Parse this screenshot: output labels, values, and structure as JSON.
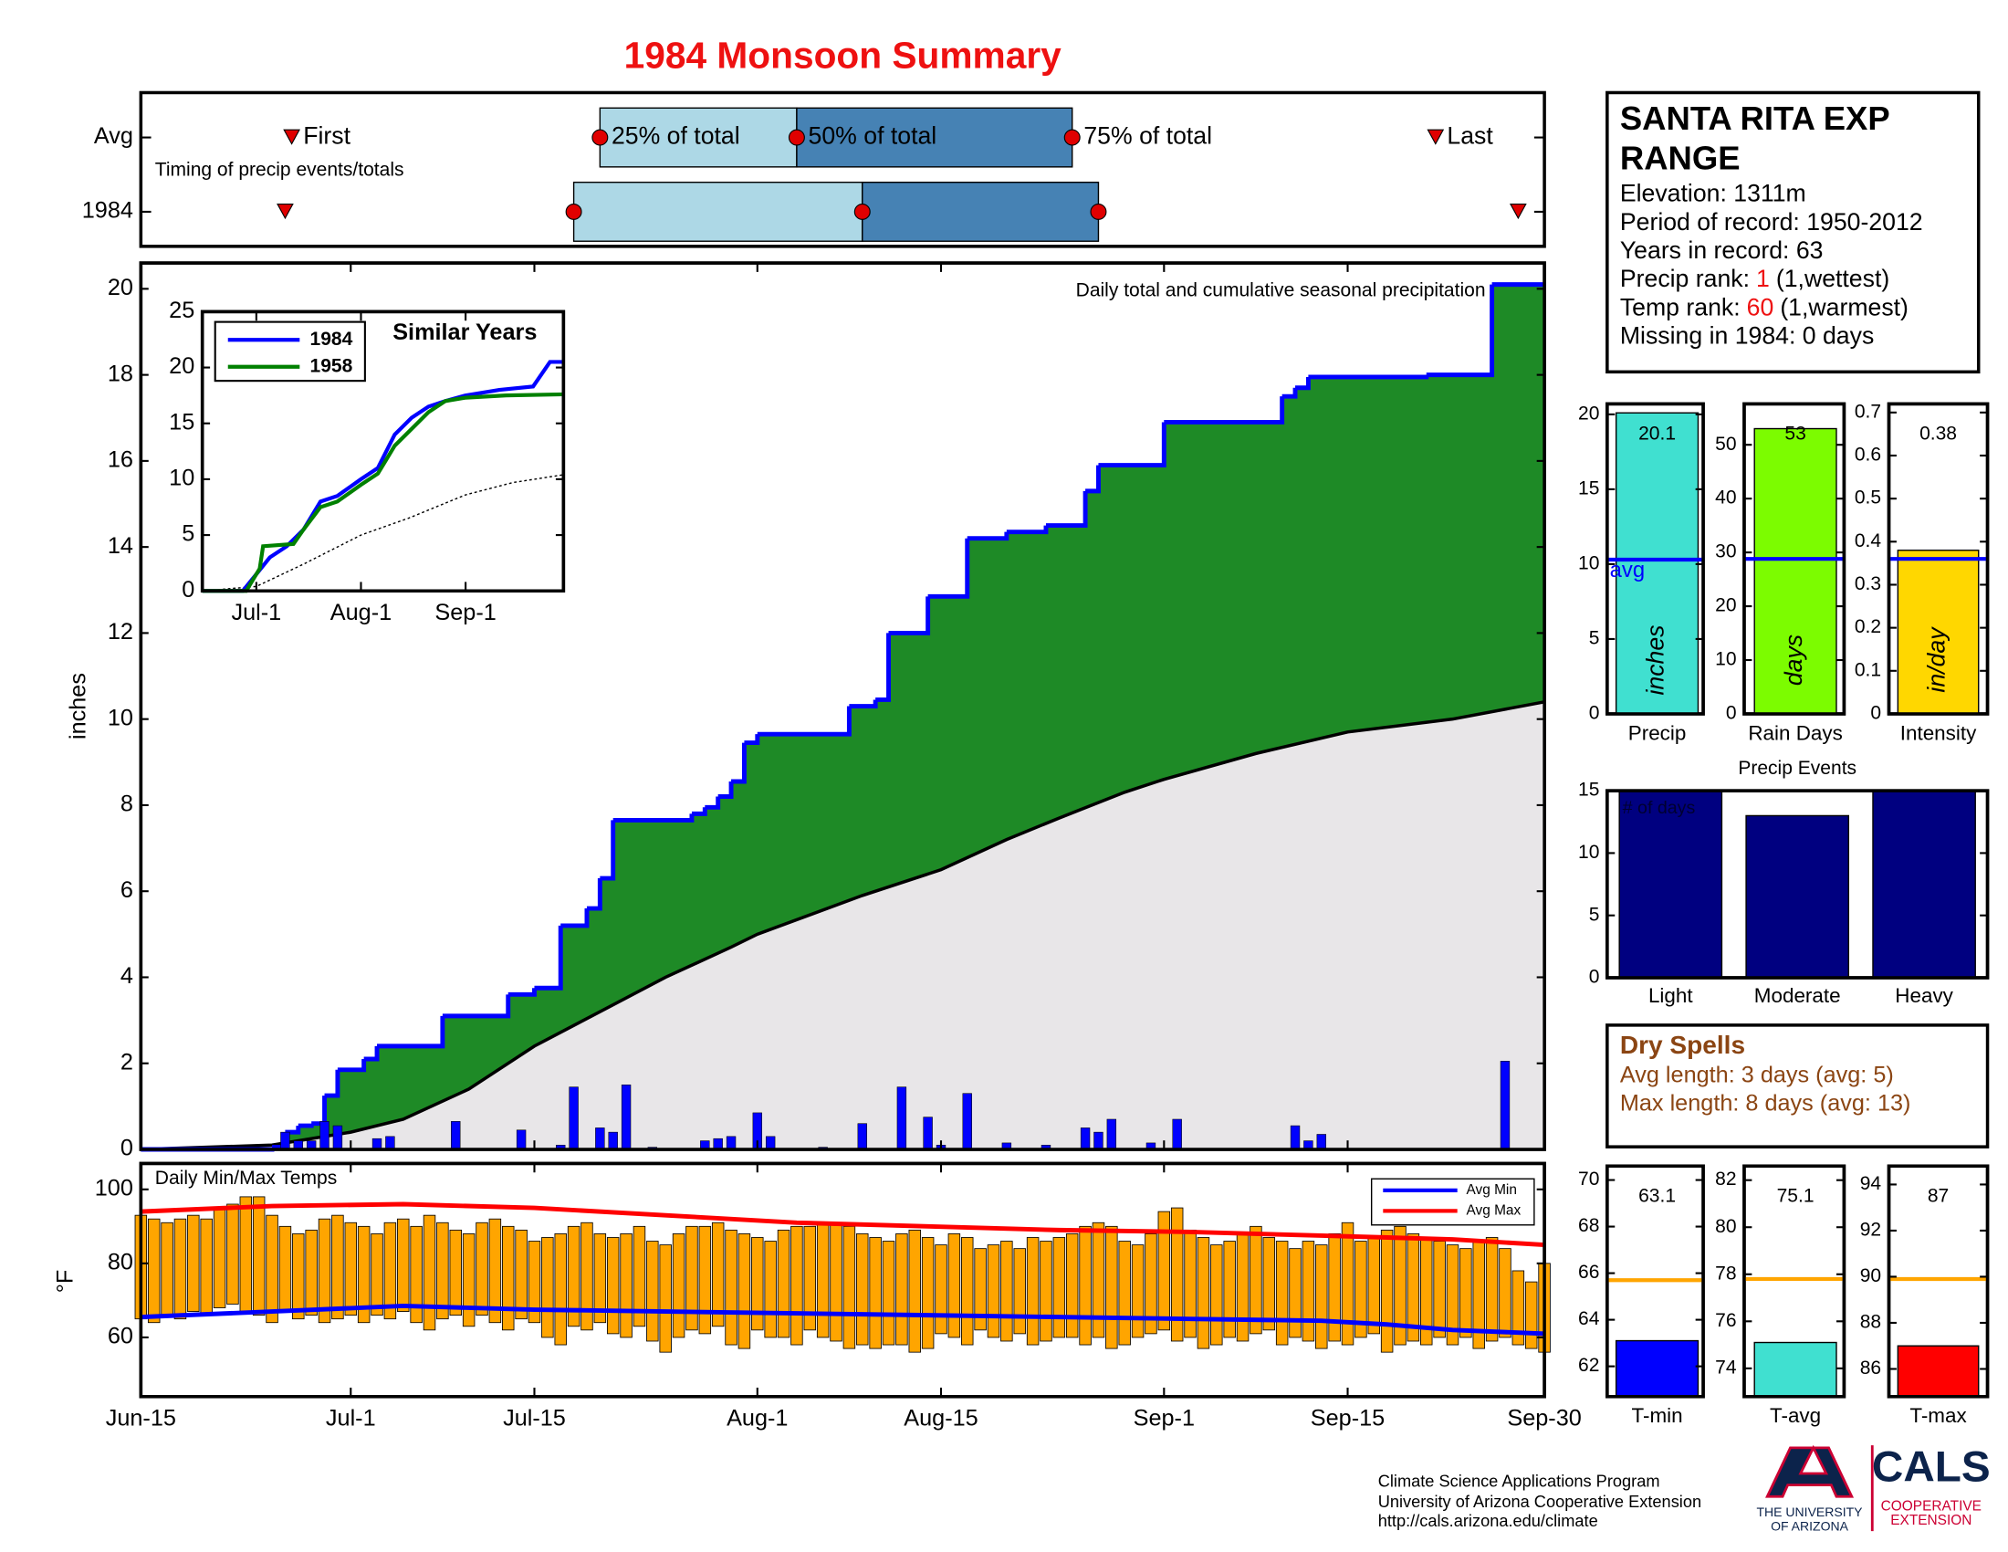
{
  "title": "1984 Monsoon Summary",
  "station": {
    "title_lines": [
      "SANTA RITA EXP",
      "RANGE"
    ],
    "lines": [
      {
        "text": "Elevation: 1311m"
      },
      {
        "text": "Period of record: 1950-2012"
      },
      {
        "text": "Years in record: 63"
      },
      {
        "text": "Precip rank:",
        "highlight": "1",
        "note": "(1,wettest)"
      },
      {
        "text": "Temp rank:",
        "highlight": "60",
        "note": "(1,warmest)"
      },
      {
        "text": "Missing in 1984: 0 days"
      }
    ]
  },
  "dry_spells": {
    "title": "Dry Spells",
    "lines": [
      "Avg length: 3 days (avg: 5)",
      "Max length: 8 days (avg: 13)"
    ]
  },
  "footer": {
    "lines": [
      "Climate Science Applications Program",
      "University of Arizona Cooperative Extension",
      "http://cals.arizona.edu/climate"
    ],
    "logo_ua": [
      "THE UNIVERSITY",
      "OF ARIZONA"
    ],
    "logo_cals": "CALS",
    "logo_cals_sub": [
      "COOPERATIVE",
      "EXTENSION"
    ]
  },
  "chart_data": [
    {
      "type": "timeline",
      "note": "Timing of precip events/totals",
      "xlim": [
        0,
        107
      ],
      "labels": {
        "first": "First",
        "q25": "25% of total",
        "q50": "50% of total",
        "q75": "75% of total",
        "last": "Last"
      },
      "rows": [
        {
          "name": "Avg",
          "first": 11.5,
          "q25": 35,
          "q50": 50,
          "q75": 71,
          "last": 98.7
        },
        {
          "name": "1984",
          "first": 11,
          "q25": 33,
          "q50": 55,
          "q75": 73,
          "last": 105
        }
      ],
      "colors": {
        "lower": "#add8e6",
        "upper": "#4682b4",
        "marker": "#e00000"
      }
    },
    {
      "type": "area",
      "text": "Daily total and cumulative seasonal precipitation",
      "ylabel": "inches",
      "xlim": [
        0,
        107
      ],
      "ylim": [
        0,
        20.6
      ],
      "yticks": [
        0,
        2,
        4,
        6,
        8,
        10,
        12,
        14,
        16,
        18,
        20
      ],
      "cumulative": {
        "color": "#1e8a26",
        "line_color": "#0000ff",
        "x": [
          0,
          10,
          11,
          12,
          13,
          14,
          15,
          17,
          18,
          23,
          28,
          30,
          32,
          34,
          35,
          36,
          42,
          43,
          44,
          45,
          46,
          47,
          54,
          56,
          57,
          60,
          63,
          66,
          69,
          72,
          73,
          78,
          87,
          88,
          89,
          98,
          103
        ],
        "values": [
          0,
          0.05,
          0.4,
          0.55,
          0.6,
          1.25,
          1.85,
          2.1,
          2.4,
          3.1,
          3.6,
          3.75,
          5.2,
          5.6,
          6.3,
          7.65,
          7.8,
          7.95,
          8.2,
          8.55,
          9.45,
          9.65,
          10.3,
          10.45,
          12.0,
          12.85,
          14.2,
          14.35,
          14.5,
          15.3,
          15.9,
          16.9,
          17.5,
          17.7,
          17.95,
          18.0,
          20.1
        ]
      },
      "average": {
        "color": "#e8e6e8",
        "line_color": "#000000",
        "x": [
          0,
          10,
          16,
          20,
          25,
          30,
          35,
          40,
          45,
          47,
          55,
          61,
          66,
          70,
          75,
          78,
          85,
          92,
          100,
          107
        ],
        "values": [
          0,
          0.1,
          0.4,
          0.7,
          1.4,
          2.4,
          3.2,
          4.0,
          4.7,
          5.0,
          5.9,
          6.5,
          7.2,
          7.7,
          8.3,
          8.6,
          9.2,
          9.7,
          10.0,
          10.4
        ]
      },
      "daily": {
        "color": "#0000ff",
        "x": [
          11,
          12,
          13,
          14,
          15,
          18,
          19,
          24,
          29,
          32,
          33,
          35,
          36,
          37,
          39,
          43,
          44,
          45,
          47,
          48,
          52,
          55,
          58,
          60,
          61,
          63,
          66,
          69,
          72,
          73,
          74,
          77,
          79,
          88,
          89,
          90,
          104
        ],
        "values": [
          0.4,
          0.2,
          0.2,
          0.65,
          0.55,
          0.25,
          0.3,
          0.65,
          0.45,
          0.1,
          1.45,
          0.5,
          0.4,
          1.5,
          0.05,
          0.2,
          0.25,
          0.3,
          0.85,
          0.3,
          0.05,
          0.6,
          1.45,
          0.75,
          0.1,
          1.3,
          0.15,
          0.1,
          0.5,
          0.4,
          0.7,
          0.15,
          0.7,
          0.55,
          0.2,
          0.35,
          2.05
        ]
      }
    },
    {
      "type": "line",
      "title": "Similar Years",
      "xlim": [
        0,
        107
      ],
      "ylim": [
        0,
        25
      ],
      "yticks": [
        0,
        5,
        10,
        15,
        20,
        25
      ],
      "xticks": [
        {
          "value": 16,
          "label": "Jul-1"
        },
        {
          "value": 47,
          "label": "Aug-1"
        },
        {
          "value": 78,
          "label": "Sep-1"
        }
      ],
      "series": [
        {
          "name": "1984",
          "color": "#0000ff",
          "x": [
            0,
            12,
            16,
            20,
            25,
            30,
            35,
            40,
            47,
            52,
            57,
            62,
            67,
            72,
            78,
            88,
            98,
            103,
            107
          ],
          "values": [
            0,
            0,
            1.5,
            3,
            4,
            5.5,
            8,
            8.5,
            10,
            11,
            14,
            15.5,
            16.5,
            17,
            17.5,
            18,
            18.3,
            20.5,
            20.5
          ]
        },
        {
          "name": "1958",
          "color": "#008000",
          "x": [
            0,
            13,
            17,
            18,
            27,
            30,
            35,
            40,
            47,
            52,
            57,
            62,
            67,
            72,
            78,
            90,
            107
          ],
          "values": [
            0,
            0,
            2,
            4,
            4.2,
            5.5,
            7.5,
            8,
            9.5,
            10.5,
            13,
            14.5,
            16,
            17,
            17.3,
            17.5,
            17.6
          ]
        }
      ],
      "average": {
        "color": "#000000",
        "x": [
          0,
          16,
          30,
          47,
          61,
          78,
          92,
          107
        ],
        "values": [
          0,
          0.4,
          2.4,
          5,
          6.5,
          8.6,
          9.7,
          10.4
        ]
      }
    },
    {
      "type": "floating_bar",
      "title": "Daily Min/Max Temps",
      "ylabel": "°F",
      "xlim": [
        0,
        107
      ],
      "ylim": [
        44,
        107
      ],
      "yticks": [
        60,
        80,
        100
      ],
      "color": "#ffa500",
      "xticks": [
        {
          "value": 0,
          "label": "Jun-15"
        },
        {
          "value": 16,
          "label": "Jul-1"
        },
        {
          "value": 30,
          "label": "Jul-15"
        },
        {
          "value": 47,
          "label": "Aug-1"
        },
        {
          "value": 61,
          "label": "Aug-15"
        },
        {
          "value": 78,
          "label": "Sep-1"
        },
        {
          "value": 92,
          "label": "Sep-15"
        },
        {
          "value": 107,
          "label": "Sep-30"
        }
      ],
      "max": [
        93,
        92,
        91,
        92,
        93,
        92,
        95,
        96,
        98,
        98,
        93,
        90,
        88,
        89,
        92,
        93,
        91,
        90,
        88,
        91,
        92,
        90,
        93,
        91,
        89,
        88,
        91,
        92,
        90,
        89,
        86,
        87,
        88,
        90,
        91,
        88,
        87,
        88,
        90,
        86,
        85,
        88,
        90,
        90,
        91,
        89,
        88,
        87,
        86,
        89,
        90,
        90,
        91,
        91,
        90,
        88,
        87,
        86,
        88,
        89,
        87,
        85,
        88,
        87,
        84,
        85,
        86,
        84,
        87,
        86,
        87,
        88,
        90,
        91,
        90,
        86,
        85,
        88,
        94,
        95,
        89,
        87,
        85,
        86,
        88,
        90,
        87,
        86,
        84,
        86,
        85,
        88,
        91,
        86,
        87,
        89,
        90,
        88,
        87,
        86,
        85,
        84,
        86,
        87,
        84,
        78,
        75,
        80
      ],
      "min": [
        65,
        64,
        66,
        65,
        67,
        66,
        68,
        69,
        67,
        66,
        64,
        67,
        65,
        66,
        64,
        65,
        66,
        64,
        66,
        65,
        67,
        64,
        62,
        65,
        66,
        63,
        66,
        64,
        62,
        65,
        64,
        60,
        58,
        63,
        62,
        64,
        61,
        60,
        63,
        59,
        56,
        60,
        62,
        61,
        63,
        58,
        57,
        62,
        60,
        60,
        58,
        62,
        60,
        59,
        57,
        58,
        57,
        58,
        58,
        56,
        57,
        61,
        60,
        58,
        62,
        60,
        59,
        61,
        58,
        59,
        60,
        60,
        58,
        60,
        57,
        58,
        60,
        61,
        62,
        59,
        60,
        57,
        58,
        60,
        59,
        61,
        62,
        58,
        60,
        59,
        57,
        59,
        58,
        60,
        61,
        56,
        58,
        59,
        58,
        60,
        58,
        60,
        57,
        59,
        60,
        58,
        57,
        56
      ],
      "series": [
        {
          "name": "Avg Min",
          "color": "#0000ff",
          "x": [
            0,
            10,
            20,
            30,
            40,
            50,
            60,
            70,
            80,
            90,
            95,
            100,
            107
          ],
          "values": [
            65.5,
            67,
            68.5,
            67.5,
            67,
            66.5,
            66,
            65.5,
            65,
            64.5,
            63.5,
            62,
            61
          ]
        },
        {
          "name": "Avg Max",
          "color": "#ff0000",
          "x": [
            0,
            10,
            20,
            30,
            40,
            50,
            60,
            70,
            80,
            90,
            100,
            107
          ],
          "values": [
            94,
            95.5,
            96,
            95,
            93,
            91,
            90,
            89,
            88.5,
            87.5,
            86.5,
            85
          ]
        }
      ]
    },
    {
      "type": "bar",
      "xlabel": "Precip",
      "unit": "inches",
      "values": [
        20.1
      ],
      "average": 10.3,
      "average_label": "avg",
      "color": "#40e0d0",
      "average_color": "#0000ff",
      "ylim": [
        0,
        20.7
      ],
      "yticks": [
        0,
        5,
        10,
        15,
        20
      ]
    },
    {
      "type": "bar",
      "xlabel": "Rain Days",
      "unit": "days",
      "values": [
        53
      ],
      "average": 28.8,
      "color": "#7cfc00",
      "average_color": "#0000ff",
      "ylim": [
        0,
        57.6
      ],
      "yticks": [
        0,
        10,
        20,
        30,
        40,
        50
      ]
    },
    {
      "type": "bar",
      "xlabel": "Intensity",
      "unit": "in/day",
      "values": [
        0.38
      ],
      "average": 0.36,
      "color": "#ffd700",
      "average_color": "#0000ff",
      "ylim": [
        0,
        0.72
      ],
      "yticks": [
        0,
        0.1,
        0.2,
        0.3,
        0.4,
        0.5,
        0.6,
        0.7
      ]
    },
    {
      "type": "bar",
      "title": "Precip Events",
      "ylabel": "# of days",
      "categories": [
        "Light",
        "Moderate",
        "Heavy"
      ],
      "values": [
        15,
        13,
        15
      ],
      "color": "#000080",
      "ylim": [
        0,
        15
      ],
      "yticks": [
        0,
        5,
        10,
        15
      ]
    },
    {
      "type": "bar",
      "xlabel": "T-min",
      "values": [
        63.1
      ],
      "average": 65.7,
      "color": "#0000ff",
      "average_color": "#ffa500",
      "ylim": [
        60.7,
        70.6
      ],
      "yticks": [
        62,
        64,
        66,
        68,
        70
      ]
    },
    {
      "type": "bar",
      "xlabel": "T-avg",
      "values": [
        75.1
      ],
      "average": 77.8,
      "color": "#40e0d0",
      "average_color": "#ffa500",
      "ylim": [
        72.8,
        82.6
      ],
      "yticks": [
        74,
        76,
        78,
        80,
        82
      ]
    },
    {
      "type": "bar",
      "xlabel": "T-max",
      "values": [
        87
      ],
      "average": 89.9,
      "color": "#ff0000",
      "average_color": "#ffa500",
      "ylim": [
        84.8,
        94.8
      ],
      "yticks": [
        86,
        88,
        90,
        92,
        94
      ]
    }
  ]
}
